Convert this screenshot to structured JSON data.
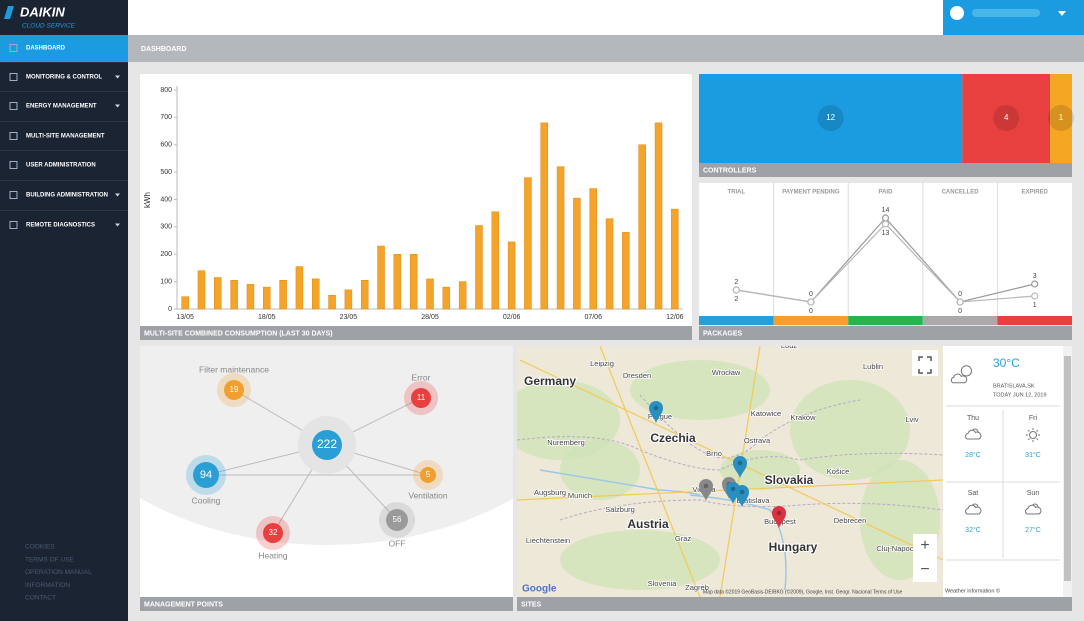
{
  "sidebar": {
    "logo": "DAIKIN",
    "logo_sub": "CLOUD SERVICE",
    "menu": [
      {
        "label": "DASHBOARD",
        "active": true,
        "has_submenu": false
      },
      {
        "label": "MONITORING & CONTROL",
        "active": false,
        "has_submenu": true
      },
      {
        "label": "ENERGY MANAGEMENT",
        "active": false,
        "has_submenu": true
      },
      {
        "label": "MULTI-SITE MANAGEMENT",
        "active": false,
        "has_submenu": false
      },
      {
        "label": "USER ADMINISTRATION",
        "active": false,
        "has_submenu": false
      },
      {
        "label": "BUILDING ADMINISTRATION",
        "active": false,
        "has_submenu": true
      },
      {
        "label": "REMOTE DIAGNOSTICS",
        "active": false,
        "has_submenu": true
      }
    ],
    "footer_links": [
      "COOKIES",
      "TERMS OF USE",
      "OPERATION MANUAL",
      "INFORMATION",
      "CONTACT"
    ]
  },
  "header": {
    "breadcrumb": "DASHBOARD"
  },
  "chart_data": [
    {
      "type": "bar",
      "title": "MULTI-SITE COMBINED CONSUMPTION (LAST 30 DAYS)",
      "ylabel": "kWh",
      "categories": [
        "13/05",
        null,
        null,
        null,
        null,
        "18/05",
        null,
        null,
        null,
        null,
        "23/05",
        null,
        null,
        null,
        null,
        "28/05",
        null,
        null,
        null,
        null,
        "02/06",
        null,
        null,
        null,
        null,
        "07/06",
        null,
        null,
        null,
        null,
        "12/06"
      ],
      "values": [
        45,
        140,
        115,
        105,
        90,
        80,
        105,
        155,
        110,
        50,
        70,
        105,
        230,
        200,
        200,
        110,
        80,
        100,
        305,
        355,
        245,
        480,
        680,
        520,
        405,
        440,
        330,
        280,
        600,
        680,
        365
      ],
      "color": "#f4a42a",
      "ylim": [
        0,
        800
      ],
      "yticks": [
        0,
        100,
        200,
        300,
        400,
        500,
        600,
        700,
        800
      ],
      "grid": false
    },
    {
      "type": "treemap",
      "title": "CONTROLLERS",
      "values": [
        12,
        4,
        1
      ],
      "colors": [
        "#1b9be0",
        "#e8403f",
        "#f5a623"
      ]
    },
    {
      "type": "line",
      "title": "PACKAGES",
      "categories": [
        "TRIAL",
        "PAYMENT PENDING",
        "PAID",
        "CANCELLED",
        "EXPIRED"
      ],
      "category_colors": [
        "#2a9fd6",
        "#f0a030",
        "#2bb24c",
        "#aaaaaa",
        "#e8403f"
      ],
      "series": [
        {
          "color": "#9a9a9a",
          "values": [
            2,
            0,
            14,
            0,
            3
          ]
        },
        {
          "color": "#b8b8b8",
          "values": [
            2,
            0,
            13,
            0,
            1
          ]
        }
      ]
    }
  ],
  "management_points": {
    "title": "MANAGEMENT POINTS",
    "total": 222,
    "total_color": "#2a9fd6",
    "items": [
      {
        "label": "Filter maintenance",
        "value": 19,
        "color": "#f0a030"
      },
      {
        "label": "Error",
        "value": 11,
        "color": "#e8403f"
      },
      {
        "label": "Cooling",
        "value": 94,
        "color": "#2a9fd6"
      },
      {
        "label": "Ventilation",
        "value": 5,
        "color": "#f0a030"
      },
      {
        "label": "Heating",
        "value": 32,
        "color": "#e8403f"
      },
      {
        "label": "OFF",
        "value": 56,
        "color": "#9a9a9a"
      }
    ]
  },
  "map": {
    "title": "SITES",
    "google": "Google",
    "attribution": "Map data ©2019 GeoBasis-DE/BKG (©2009), Google, Inst. Geogr. Nacional   Terms of Use",
    "zoom_in": "+",
    "zoom_out": "−",
    "labels": [
      {
        "text": "Germany",
        "kind": "country"
      },
      {
        "text": "Leipzig",
        "kind": "city"
      },
      {
        "text": "Dresden",
        "kind": "city"
      },
      {
        "text": "Wrocław",
        "kind": "city"
      },
      {
        "text": "Łódź",
        "kind": "city"
      },
      {
        "text": "Lublin",
        "kind": "city"
      },
      {
        "text": "Prague",
        "kind": "city"
      },
      {
        "text": "Katowice",
        "kind": "city"
      },
      {
        "text": "Kraków",
        "kind": "city"
      },
      {
        "text": "Czechia",
        "kind": "country"
      },
      {
        "text": "Nuremberg",
        "kind": "city"
      },
      {
        "text": "Ostrava",
        "kind": "city"
      },
      {
        "text": "Lviv",
        "kind": "city"
      },
      {
        "text": "Brno",
        "kind": "city"
      },
      {
        "text": "Slovakia",
        "kind": "country"
      },
      {
        "text": "Košice",
        "kind": "city"
      },
      {
        "text": "Augsburg",
        "kind": "city"
      },
      {
        "text": "Munich",
        "kind": "city"
      },
      {
        "text": "Vienna",
        "kind": "city"
      },
      {
        "text": "Bratislava",
        "kind": "city"
      },
      {
        "text": "Salzburg",
        "kind": "city"
      },
      {
        "text": "Austria",
        "kind": "country"
      },
      {
        "text": "Budapest",
        "kind": "city"
      },
      {
        "text": "Debrecen",
        "kind": "city"
      },
      {
        "text": "Liechtenstein",
        "kind": "city"
      },
      {
        "text": "Graz",
        "kind": "city"
      },
      {
        "text": "Hungary",
        "kind": "country"
      },
      {
        "text": "Cluj-Napoca",
        "kind": "city"
      },
      {
        "text": "Slovenia",
        "kind": "city"
      },
      {
        "text": "Zagreb",
        "kind": "city"
      }
    ]
  },
  "weather": {
    "temp": "30°C",
    "location": "BRATISLAVA,SK",
    "date": "TODAY JUN 12, 2019",
    "credit": "Weather information ©",
    "forecast": [
      {
        "day": "Thu",
        "temp": "28°C",
        "icon": "cloud"
      },
      {
        "day": "Fri",
        "temp": "31°C",
        "icon": "sun"
      },
      {
        "day": "Sat",
        "temp": "32°C",
        "icon": "cloud"
      },
      {
        "day": "Sun",
        "temp": "27°C",
        "icon": "cloud"
      }
    ]
  }
}
